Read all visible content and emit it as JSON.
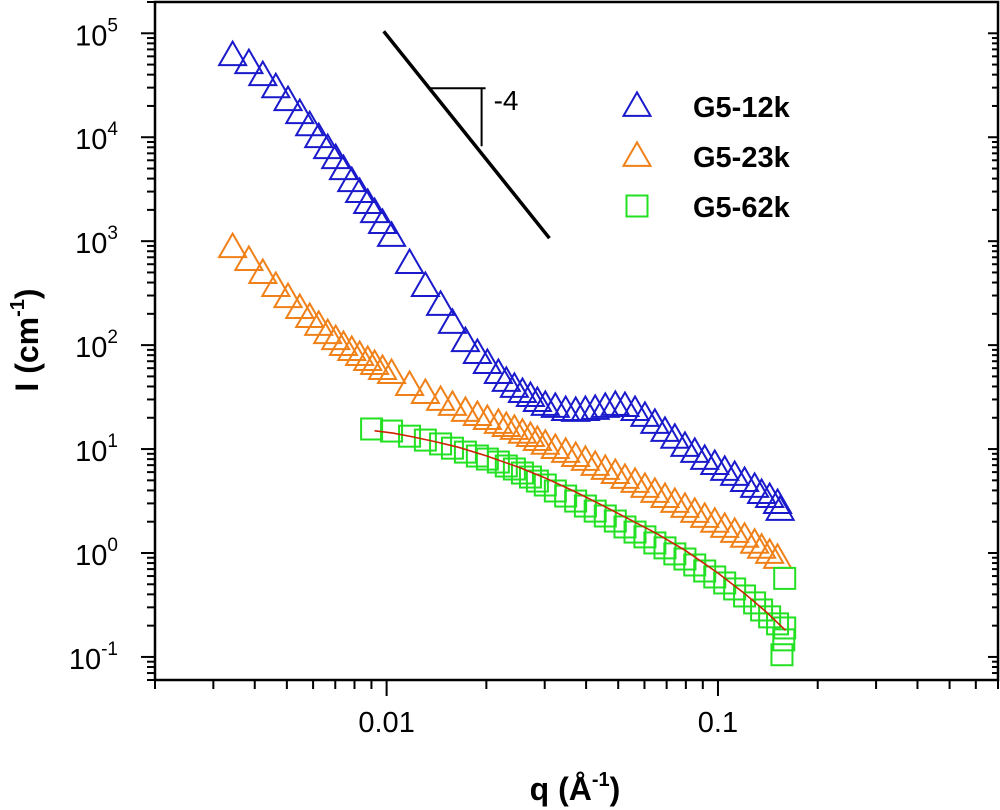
{
  "chart_data": {
    "type": "scatter",
    "title": "",
    "xlabel": "q (Å",
    "xlabel_sup": "-1",
    "xlabel_close": ")",
    "ylabel": "I (cm",
    "ylabel_sup": "-1",
    "ylabel_close": ")",
    "xscale": "log",
    "yscale": "log",
    "xlim": [
      0.002,
      0.7
    ],
    "ylim": [
      0.06,
      200000
    ],
    "grid": false,
    "legend_position": "top-right",
    "x_ticks": [
      {
        "value": 0.01,
        "label": "0.01"
      },
      {
        "value": 0.1,
        "label": "0.1"
      }
    ],
    "y_ticks": [
      {
        "value": 100000,
        "base": "10",
        "exp": "5"
      },
      {
        "value": 10000,
        "base": "10",
        "exp": "4"
      },
      {
        "value": 1000,
        "base": "10",
        "exp": "3"
      },
      {
        "value": 100,
        "base": "10",
        "exp": "2"
      },
      {
        "value": 10,
        "base": "10",
        "exp": "1"
      },
      {
        "value": 1,
        "base": "10",
        "exp": "0"
      },
      {
        "value": 0.1,
        "base": "10",
        "exp": "-1"
      }
    ],
    "series": [
      {
        "name": "G5-12k",
        "marker": "triangle",
        "color": "#1a1acc",
        "x": [
          0.00343,
          0.00384,
          0.00423,
          0.00463,
          0.00504,
          0.00547,
          0.00586,
          0.00624,
          0.00664,
          0.00702,
          0.00741,
          0.00785,
          0.00829,
          0.00877,
          0.0092,
          0.00972,
          0.01035,
          0.01173,
          0.01309,
          0.01455,
          0.0158,
          0.01729,
          0.01879,
          0.02014,
          0.02174,
          0.02297,
          0.0243,
          0.0257,
          0.02717,
          0.02851,
          0.03012,
          0.0323,
          0.0347,
          0.0372,
          0.0398,
          0.0426,
          0.0457,
          0.049,
          0.0524,
          0.0562,
          0.0602,
          0.0645,
          0.0692,
          0.0741,
          0.0795,
          0.0851,
          0.0912,
          0.0978,
          0.1048,
          0.1123,
          0.1203,
          0.129,
          0.1354,
          0.1432,
          0.1513,
          0.154
        ],
        "y": [
          61400,
          51500,
          39500,
          30200,
          22700,
          17000,
          13000,
          10000,
          7830,
          6280,
          4920,
          3770,
          2960,
          2320,
          1900,
          1490,
          1120,
          614,
          369,
          243,
          163,
          109,
          83.8,
          67.1,
          53.8,
          45.1,
          39.5,
          35.3,
          32.3,
          28.9,
          26.5,
          25.4,
          23.7,
          23.2,
          23.7,
          24.3,
          25.4,
          26.5,
          25.9,
          23.7,
          20.8,
          17.8,
          14.9,
          12.8,
          10.7,
          9.37,
          8.02,
          7.17,
          6.28,
          5.62,
          4.92,
          4.31,
          3.77,
          3.45,
          3.02,
          2.59
        ]
      },
      {
        "name": "G5-23k",
        "marker": "triangle",
        "color": "#f08018",
        "x": [
          0.00343,
          0.00384,
          0.00423,
          0.00463,
          0.00504,
          0.00547,
          0.00586,
          0.00624,
          0.00664,
          0.00702,
          0.00741,
          0.00785,
          0.00829,
          0.00877,
          0.0092,
          0.00972,
          0.01035,
          0.01173,
          0.01309,
          0.01455,
          0.0158,
          0.01729,
          0.01879,
          0.02014,
          0.02174,
          0.02297,
          0.0243,
          0.0257,
          0.02717,
          0.02851,
          0.03012,
          0.0323,
          0.0347,
          0.0372,
          0.0398,
          0.0426,
          0.0457,
          0.049,
          0.0524,
          0.0562,
          0.0602,
          0.0645,
          0.0692,
          0.0741,
          0.0795,
          0.0851,
          0.0912,
          0.0978,
          0.1048,
          0.1123,
          0.1203,
          0.129,
          0.1354,
          0.1432,
          0.1513
        ],
        "y": [
          875,
          657,
          493,
          369,
          289,
          227,
          186,
          156,
          130,
          114,
          100,
          89.5,
          80.2,
          71.7,
          65.7,
          58.8,
          53.8,
          41.2,
          34.5,
          29.6,
          26.5,
          23.2,
          21.2,
          19.4,
          17.8,
          16.6,
          15.6,
          14.3,
          13.3,
          12.2,
          11.2,
          10.2,
          9.37,
          8.56,
          7.84,
          7.02,
          6.42,
          5.87,
          5.26,
          4.82,
          4.31,
          3.86,
          3.45,
          3.09,
          2.77,
          2.48,
          2.22,
          1.99,
          1.78,
          1.59,
          1.43,
          1.25,
          1.12,
          1.0,
          0.895
        ]
      },
      {
        "name": "G5-62k",
        "marker": "square",
        "color": "#22e022",
        "x": [
          0.00901,
          0.01035,
          0.01173,
          0.01309,
          0.01455,
          0.0158,
          0.01729,
          0.01879,
          0.02014,
          0.02174,
          0.02297,
          0.0243,
          0.0257,
          0.02717,
          0.02851,
          0.03012,
          0.0323,
          0.0347,
          0.0372,
          0.0398,
          0.0426,
          0.0457,
          0.049,
          0.0524,
          0.0562,
          0.0602,
          0.0645,
          0.0692,
          0.0741,
          0.0795,
          0.0851,
          0.0912,
          0.0978,
          0.1048,
          0.1123,
          0.1203,
          0.129,
          0.1354,
          0.1432,
          0.1513,
          0.159,
          0.158,
          0.156,
          0.159
        ],
        "y": [
          15.6,
          14.9,
          13.3,
          12.2,
          11.2,
          10.2,
          9.35,
          8.57,
          8.01,
          7.5,
          6.87,
          6.43,
          5.88,
          5.38,
          4.92,
          4.51,
          3.95,
          3.53,
          3.16,
          2.83,
          2.53,
          2.27,
          2.03,
          1.78,
          1.59,
          1.43,
          1.25,
          1.12,
          0.98,
          0.875,
          0.767,
          0.671,
          0.588,
          0.515,
          0.451,
          0.386,
          0.331,
          0.283,
          0.243,
          0.208,
          0.57,
          0.146,
          0.105,
          0.19
        ]
      }
    ],
    "fit_line": {
      "name": "model fit (G5-62k)",
      "color": "#cc2200",
      "x": [
        0.0092,
        0.0105,
        0.012,
        0.014,
        0.0165,
        0.02,
        0.025,
        0.03,
        0.037,
        0.045,
        0.055,
        0.065,
        0.08,
        0.1,
        0.12,
        0.14,
        0.16
      ],
      "y": [
        15.0,
        14.2,
        13.1,
        11.8,
        10.4,
        8.6,
        6.7,
        5.3,
        3.9,
        2.85,
        2.05,
        1.55,
        1.05,
        0.64,
        0.41,
        0.27,
        0.18
      ]
    },
    "annotations": [
      {
        "type": "slope_line",
        "label": "-4",
        "slope": -4,
        "line": {
          "x": [
            0.0098,
            0.031
          ],
          "y": [
            104500,
            1069
          ]
        },
        "triangle": {
          "x": [
            0.01358,
            0.01935
          ],
          "y_top": 29600,
          "y_bottom": 8190
        }
      }
    ]
  }
}
